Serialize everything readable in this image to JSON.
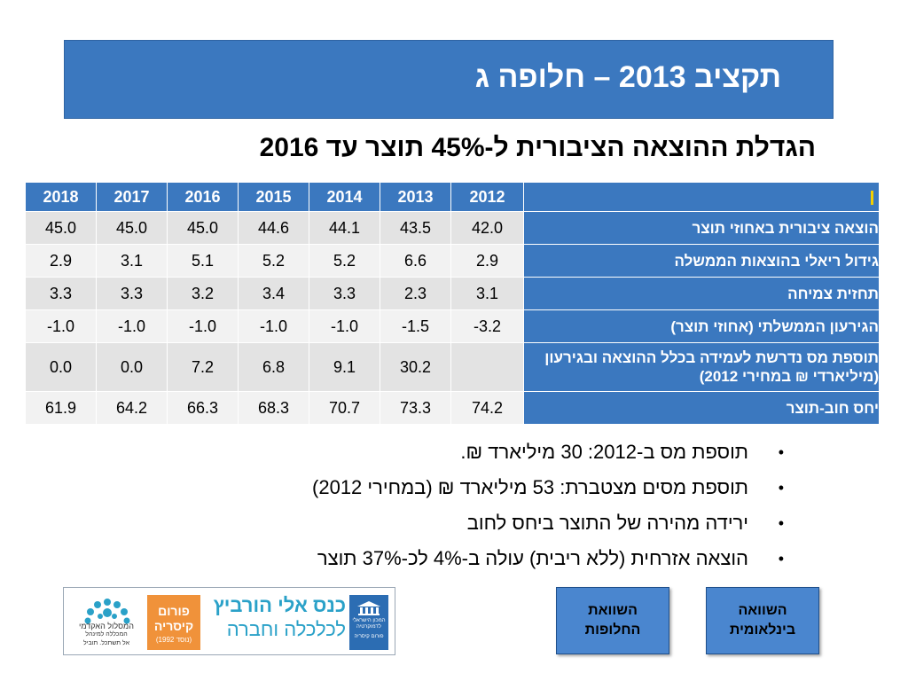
{
  "title": "תקציב 2013 – חלופה ג",
  "subtitle": "הגדלת ההוצאה הציבורית ל-45% תוצר עד 2016",
  "table": {
    "years": [
      "2012",
      "2013",
      "2014",
      "2015",
      "2016",
      "2017",
      "2018"
    ],
    "rows": [
      {
        "label": "הוצאה ציבורית באחוזי תוצר",
        "values": [
          "42.0",
          "43.5",
          "44.1",
          "44.6",
          "45.0",
          "45.0",
          "45.0"
        ]
      },
      {
        "label": "גידול ריאלי בהוצאות הממשלה",
        "values": [
          "2.9",
          "6.6",
          "5.2",
          "5.2",
          "5.1",
          "3.1",
          "2.9"
        ]
      },
      {
        "label": "תחזית צמיחה",
        "values": [
          "3.1",
          "2.3",
          "3.3",
          "3.4",
          "3.2",
          "3.3",
          "3.3"
        ]
      },
      {
        "label": "הגירעון הממשלתי (אחוזי תוצר)",
        "values": [
          "-3.2",
          "-1.5",
          "-1.0",
          "-1.0",
          "-1.0",
          "-1.0",
          "-1.0"
        ]
      },
      {
        "label": "תוספת מס נדרשת לעמידה בכלל ההוצאה ובגירעון (מיליארדי ₪ במחירי 2012)",
        "values": [
          "",
          "30.2",
          "9.1",
          "6.8",
          "7.2",
          "0.0",
          "0.0"
        ]
      },
      {
        "label": "יחס חוב-תוצר",
        "values": [
          "74.2",
          "73.3",
          "70.7",
          "68.3",
          "66.3",
          "64.2",
          "61.9"
        ]
      }
    ]
  },
  "bullets": [
    "תוספת מס ב-2012: 30 מיליארד ₪.",
    "תוספת מסים מצטברת: 53 מיליארד ₪ (במחירי 2012)",
    "ירידה מהירה של התוצר ביחס לחוב",
    "הוצאה אזרחית (ללא ריבית) עולה ב-4% לכ-37% תוצר"
  ],
  "buttons": {
    "international": "השוואה בינלאומית",
    "alternatives": "השוואת החלופות"
  },
  "footer": {
    "kenes_line1": "כנס אלי הורביץ",
    "kenes_line2": "לכלכלה וחברה",
    "forum_line1": "פורום קיסריה",
    "forum_line2": "(נוסד 1992)",
    "hatoar_line1": "המסלול האקדמי",
    "hatoar_line2": "המכללה למינהל",
    "hatoar_line3": "אל תשתכל. תוביל",
    "idi_line1": "המכון הישראלי לדמוקרטיה",
    "idi_line2": "פורום קיסריה"
  },
  "colors": {
    "header_blue": "#3b78bf",
    "button_blue": "#4a86cf",
    "corner_mark": "#f5d000"
  }
}
